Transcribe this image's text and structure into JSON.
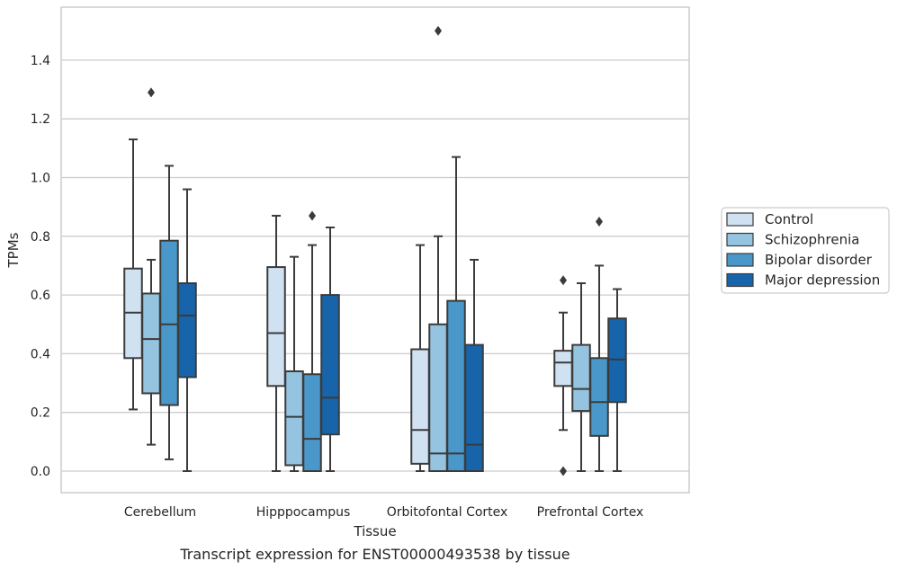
{
  "chart_data": {
    "type": "box",
    "xlabel": "Tissue",
    "ylabel": "TPMs",
    "caption": "Transcript expression for ENST00000493538 by tissue",
    "ylim": [
      -0.07,
      1.58
    ],
    "yticks": [
      "0.0",
      "0.2",
      "0.4",
      "0.6",
      "0.8",
      "1.0",
      "1.2",
      "1.4"
    ],
    "grid": true,
    "legend_position": "right",
    "categories": [
      "Cerebellum",
      "Hipppocampus",
      "Orbitofontal Cortex",
      "Prefrontal Cortex"
    ],
    "series": [
      {
        "name": "Control",
        "color": "#d0e1f2",
        "boxes": [
          {
            "whisker_low": 0.21,
            "q1": 0.385,
            "median": 0.54,
            "q3": 0.69,
            "whisker_high": 1.13,
            "outliers": []
          },
          {
            "whisker_low": 0.0,
            "q1": 0.29,
            "median": 0.47,
            "q3": 0.695,
            "whisker_high": 0.87,
            "outliers": []
          },
          {
            "whisker_low": 0.0,
            "q1": 0.025,
            "median": 0.14,
            "q3": 0.415,
            "whisker_high": 0.77,
            "outliers": []
          },
          {
            "whisker_low": 0.14,
            "q1": 0.29,
            "median": 0.37,
            "q3": 0.41,
            "whisker_high": 0.54,
            "outliers": [
              0.65,
              0.0
            ]
          }
        ]
      },
      {
        "name": "Schizophrenia",
        "color": "#94c4df",
        "boxes": [
          {
            "whisker_low": 0.09,
            "q1": 0.265,
            "median": 0.45,
            "q3": 0.605,
            "whisker_high": 0.72,
            "outliers": [
              1.29
            ]
          },
          {
            "whisker_low": 0.0,
            "q1": 0.02,
            "median": 0.185,
            "q3": 0.34,
            "whisker_high": 0.73,
            "outliers": []
          },
          {
            "whisker_low": 0.0,
            "q1": 0.0,
            "median": 0.06,
            "q3": 0.5,
            "whisker_high": 0.8,
            "outliers": [
              1.5
            ]
          },
          {
            "whisker_low": 0.0,
            "q1": 0.205,
            "median": 0.28,
            "q3": 0.43,
            "whisker_high": 0.64,
            "outliers": []
          }
        ]
      },
      {
        "name": "Bipolar disorder",
        "color": "#4a98c9",
        "boxes": [
          {
            "whisker_low": 0.04,
            "q1": 0.225,
            "median": 0.5,
            "q3": 0.785,
            "whisker_high": 1.04,
            "outliers": []
          },
          {
            "whisker_low": 0.0,
            "q1": 0.0,
            "median": 0.11,
            "q3": 0.33,
            "whisker_high": 0.77,
            "outliers": [
              0.87
            ]
          },
          {
            "whisker_low": 0.0,
            "q1": 0.0,
            "median": 0.06,
            "q3": 0.58,
            "whisker_high": 1.07,
            "outliers": []
          },
          {
            "whisker_low": 0.0,
            "q1": 0.12,
            "median": 0.235,
            "q3": 0.385,
            "whisker_high": 0.7,
            "outliers": [
              0.85
            ]
          }
        ]
      },
      {
        "name": "Major depression",
        "color": "#1764ab",
        "boxes": [
          {
            "whisker_low": 0.0,
            "q1": 0.32,
            "median": 0.53,
            "q3": 0.64,
            "whisker_high": 0.96,
            "outliers": []
          },
          {
            "whisker_low": 0.0,
            "q1": 0.125,
            "median": 0.25,
            "q3": 0.6,
            "whisker_high": 0.83,
            "outliers": []
          },
          {
            "whisker_low": 0.0,
            "q1": 0.0,
            "median": 0.09,
            "q3": 0.43,
            "whisker_high": 0.72,
            "outliers": []
          },
          {
            "whisker_low": 0.0,
            "q1": 0.235,
            "median": 0.38,
            "q3": 0.52,
            "whisker_high": 0.62,
            "outliers": []
          }
        ]
      }
    ]
  },
  "style": {
    "grid_color": "#cccccc",
    "frame_color": "#cccccc",
    "line_color": "#3b3b3b"
  }
}
